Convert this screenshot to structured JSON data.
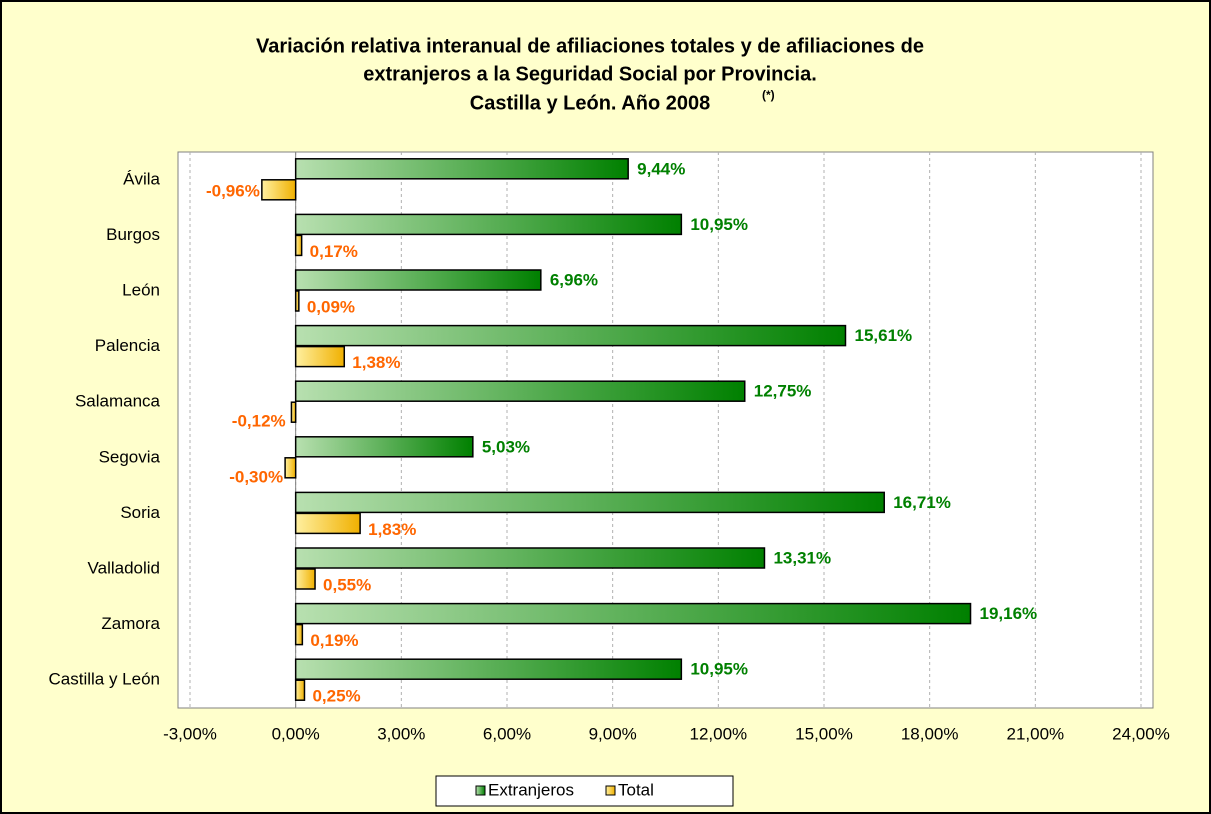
{
  "chart_data": {
    "type": "bar",
    "orientation": "horizontal",
    "title_lines": [
      "Variación relativa interanual de afiliaciones totales y de afiliaciones de",
      "extranjeros a la Seguridad Social por Provincia.",
      "Castilla y León. Año 2008"
    ],
    "title_note": "(*)",
    "categories": [
      "Ávila",
      "Burgos",
      "León",
      "Palencia",
      "Salamanca",
      "Segovia",
      "Soria",
      "Valladolid",
      "Zamora",
      "Castilla y León"
    ],
    "series": [
      {
        "name": "Extranjeros",
        "color": "#008000",
        "values": [
          9.44,
          10.95,
          6.96,
          15.61,
          12.75,
          5.03,
          16.71,
          13.31,
          19.16,
          10.95
        ],
        "value_labels": [
          "9,44%",
          "10,95%",
          "6,96%",
          "15,61%",
          "12,75%",
          "5,03%",
          "16,71%",
          "13,31%",
          "19,16%",
          "10,95%"
        ]
      },
      {
        "name": "Total",
        "color": "#ffc000",
        "values": [
          -0.96,
          0.17,
          0.09,
          1.38,
          -0.12,
          -0.3,
          1.83,
          0.55,
          0.19,
          0.25
        ],
        "value_labels": [
          "-0,96%",
          "0,17%",
          "0,09%",
          "1,38%",
          "-0,12%",
          "-0,30%",
          "1,83%",
          "0,55%",
          "0,19%",
          "0,25%"
        ]
      }
    ],
    "xlim": [
      -3,
      24
    ],
    "xticks": [
      {
        "value": -3,
        "label": "-3,00%"
      },
      {
        "value": 0,
        "label": "0,00%"
      },
      {
        "value": 3,
        "label": "3,00%"
      },
      {
        "value": 6,
        "label": "6,00%"
      },
      {
        "value": 9,
        "label": "9,00%"
      },
      {
        "value": 12,
        "label": "12,00%"
      },
      {
        "value": 15,
        "label": "15,00%"
      },
      {
        "value": 18,
        "label": "18,00%"
      },
      {
        "value": 21,
        "label": "21,00%"
      },
      {
        "value": 24,
        "label": "24,00%"
      }
    ],
    "grid": true,
    "legend": "bottom"
  }
}
